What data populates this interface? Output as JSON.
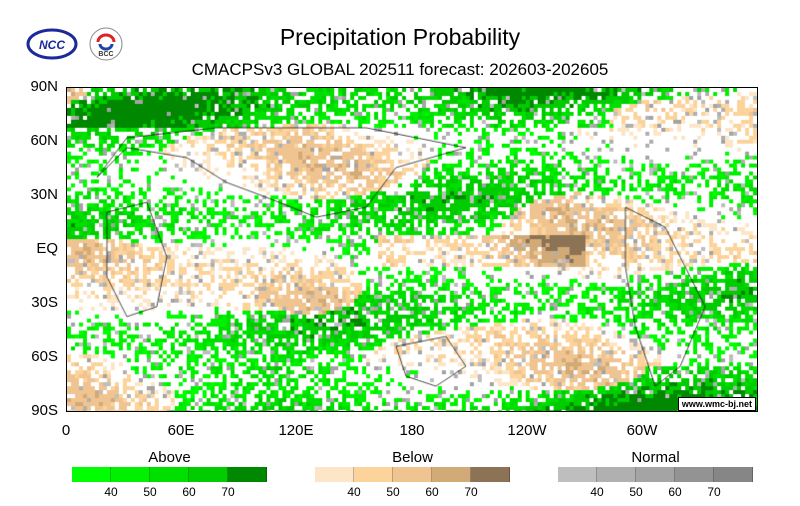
{
  "logos": {
    "ncc": "NCC",
    "bcc": "BCC"
  },
  "title": "Precipitation Probability",
  "subtitle": "CMACPSv3 GLOBAL 202511 forecast: 202603-202605",
  "watermark": "www.wmc-bj.net",
  "chart_data": {
    "type": "heatmap",
    "title": "Precipitation Probability",
    "y_ticks": [
      "90N",
      "60N",
      "30N",
      "EQ",
      "30S",
      "60S",
      "90S"
    ],
    "x_ticks": [
      "0",
      "60E",
      "120E",
      "180",
      "120W",
      "60W"
    ],
    "legends": [
      {
        "label": "Above",
        "colors": [
          "#00ff00",
          "#00f000",
          "#00e000",
          "#00cc00",
          "#008800"
        ],
        "ticks": [
          "40",
          "50",
          "60",
          "70"
        ]
      },
      {
        "label": "Below",
        "colors": [
          "#fde6c8",
          "#fcd49b",
          "#f0c490",
          "#d2aa78",
          "#8c7355"
        ],
        "ticks": [
          "40",
          "50",
          "60",
          "70"
        ]
      },
      {
        "label": "Normal",
        "colors": [
          "#bebebe",
          "#b0b0b0",
          "#a4a4a4",
          "#939393",
          "#868686"
        ],
        "ticks": [
          "40",
          "50",
          "60",
          "70"
        ]
      }
    ]
  }
}
